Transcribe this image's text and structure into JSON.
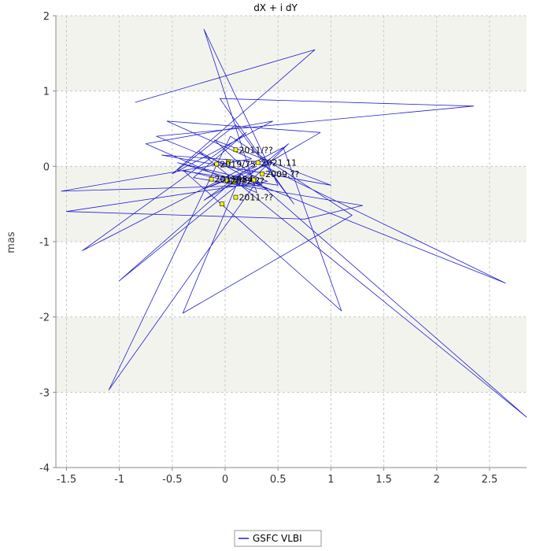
{
  "chart_data": {
    "type": "line",
    "title": "dX + i dY",
    "xlabel": "",
    "ylabel": "mas",
    "xlim": [
      -1.6,
      2.85
    ],
    "ylim": [
      -4,
      2
    ],
    "x_ticks": [
      "-1.5",
      "-1",
      "-0.5",
      "0",
      "0.5",
      "1",
      "1.5",
      "2",
      "2.5"
    ],
    "y_ticks": [
      "2",
      "1",
      "0",
      "-1",
      "-2",
      "-3",
      "-4"
    ],
    "x_tick_values": [
      -1.5,
      -1,
      -0.5,
      0,
      0.5,
      1,
      1.5,
      2,
      2.5
    ],
    "y_tick_values": [
      2,
      1,
      0,
      -1,
      -2,
      -3,
      -4
    ],
    "grid": true,
    "band_color": "#f3f3ee",
    "series_color": "#2020cc",
    "marker_color": "#ffff00",
    "legend_placement": "bottom-center",
    "series": [
      {
        "name": "GSFC VLBI",
        "x": [
          -0.85,
          0.85,
          -0.5,
          0.45,
          -0.75,
          0.3,
          -0.2,
          0.5,
          -0.45,
          0.1,
          0.65,
          -0.05,
          2.35,
          -0.65,
          0.4,
          -1.5,
          0.75,
          1.3,
          -0.3,
          0.2,
          -1.35,
          0.55,
          1.1,
          -0.4,
          0.2,
          0.6,
          -1.0,
          0.15,
          -0.4,
          1.2,
          0.05,
          -1.1,
          0.3,
          2.85,
          -0.25,
          0.4,
          -0.45,
          0.15,
          2.65,
          0.3,
          -0.2,
          0.9,
          -0.55,
          0.25,
          -1.55,
          0.35,
          -0.1,
          1.0,
          -0.6,
          0.45,
          -0.2,
          0.3
        ],
        "y": [
          0.85,
          1.55,
          -0.1,
          0.6,
          0.3,
          -0.35,
          1.82,
          -0.25,
          -0.05,
          0.55,
          -0.5,
          0.9,
          0.8,
          0.4,
          -0.2,
          -0.6,
          -0.7,
          -0.52,
          -0.15,
          0.45,
          -1.12,
          0.25,
          -1.92,
          -0.05,
          -0.25,
          0.3,
          -1.52,
          -0.1,
          -1.95,
          -0.65,
          0.4,
          -2.97,
          -0.2,
          -3.33,
          0.2,
          -0.3,
          0.05,
          -0.15,
          -1.55,
          0.05,
          -0.45,
          0.45,
          0.6,
          0.1,
          -0.33,
          -0.25,
          0.35,
          -0.25,
          0.15,
          0.05,
          -0.3,
          0.0
        ]
      }
    ],
    "highlight_points": [
      {
        "x": 0.1,
        "y": 0.22,
        "label": "2011/??"
      },
      {
        "x": -0.08,
        "y": 0.03,
        "label": "2019/75"
      },
      {
        "x": 0.03,
        "y": 0.06,
        "label": ""
      },
      {
        "x": 0.31,
        "y": 0.05,
        "label": "2021.11"
      },
      {
        "x": 0.35,
        "y": -0.1,
        "label": "2009.??"
      },
      {
        "x": -0.13,
        "y": -0.17,
        "label": "2011984"
      },
      {
        "x": 0.02,
        "y": -0.19,
        "label": "2022.??"
      },
      {
        "x": 0.08,
        "y": -0.2,
        "label": ""
      },
      {
        "x": 0.27,
        "y": -0.18,
        "label": ""
      },
      {
        "x": 0.1,
        "y": -0.41,
        "label": "2011-??"
      },
      {
        "x": -0.03,
        "y": -0.5,
        "label": ""
      }
    ]
  },
  "legend": {
    "label": "GSFC VLBI"
  }
}
